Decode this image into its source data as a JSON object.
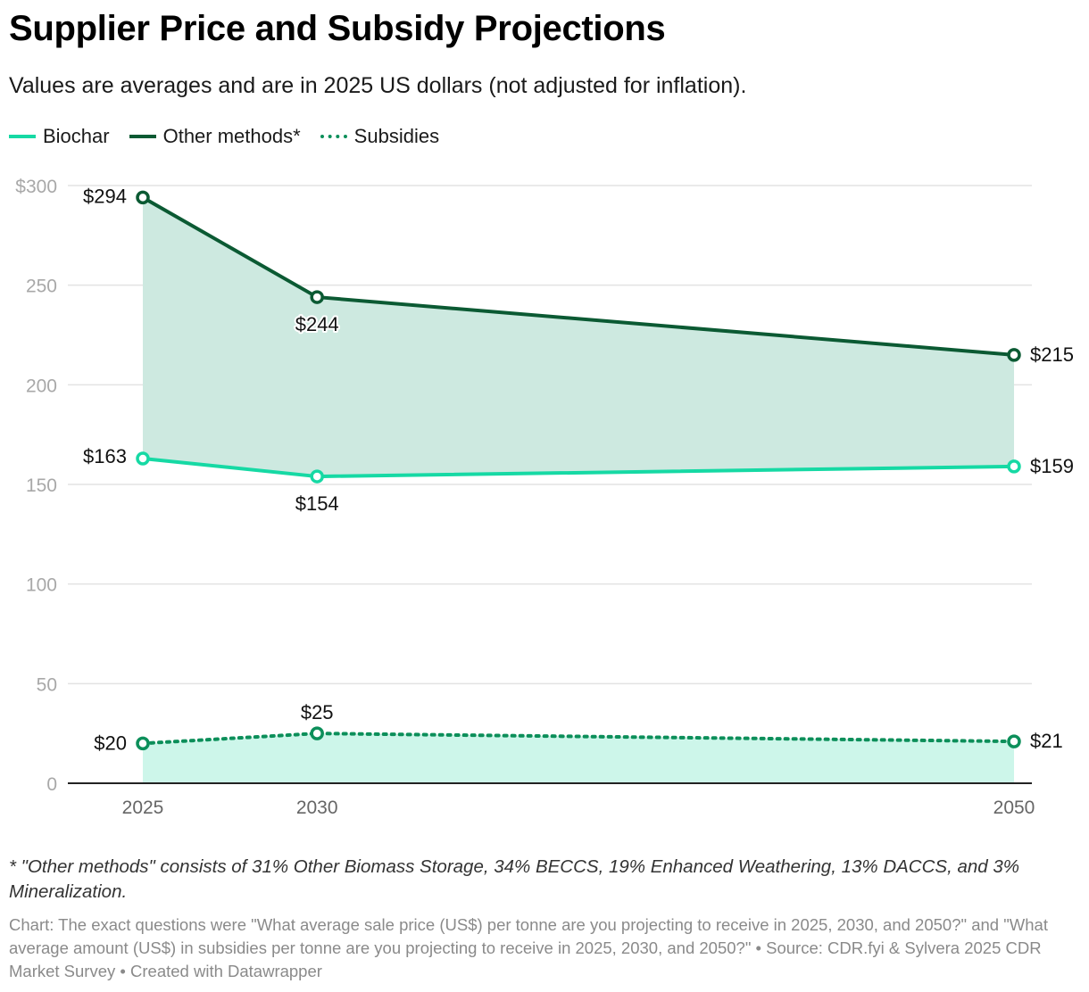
{
  "header": {
    "title": "Supplier Price and Subsidy Projections",
    "subtitle": "Values are averages and are in 2025 US dollars (not adjusted for inflation)."
  },
  "legend": [
    {
      "label": "Biochar",
      "color": "#16d9a4",
      "style": "solid"
    },
    {
      "label": "Other methods*",
      "color": "#0b5a33",
      "style": "solid"
    },
    {
      "label": "Subsidies",
      "color": "#0c8f5a",
      "style": "dotted"
    }
  ],
  "chart_data": {
    "type": "line",
    "x": [
      2025,
      2030,
      2050
    ],
    "x_tick_labels": [
      "2025",
      "2030",
      "2050"
    ],
    "ylim": [
      0,
      300
    ],
    "y_ticks": [
      0,
      50,
      100,
      150,
      200,
      250,
      300
    ],
    "y_tick_labels": [
      "0",
      "50",
      "100",
      "150",
      "200",
      "250",
      "$300"
    ],
    "grid": true,
    "legend_position": "top-left",
    "series": [
      {
        "name": "Biochar",
        "values": [
          163,
          154,
          159
        ],
        "labels": [
          "$163",
          "$154",
          "$159"
        ],
        "color": "#16d9a4",
        "dash": false
      },
      {
        "name": "Other methods*",
        "values": [
          294,
          244,
          215
        ],
        "labels": [
          "$294",
          "$244",
          "$215"
        ],
        "color": "#0b5a33",
        "dash": false
      },
      {
        "name": "Subsidies",
        "values": [
          20,
          25,
          21
        ],
        "labels": [
          "$20",
          "$25",
          "$21"
        ],
        "color": "#0c8f5a",
        "dash": true
      }
    ],
    "bands": [
      {
        "between": [
          "Biochar",
          "Other methods*"
        ],
        "color": "#cde9e0"
      },
      {
        "between": [
          "baseline",
          "Subsidies"
        ],
        "color": "#cdf6ea"
      }
    ]
  },
  "footer": {
    "note": "* \"Other methods\" consists of 31% Other Biomass Storage, 34% BECCS, 19% Enhanced Weathering, 13% DACCS, and 3% Mineralization.",
    "source": "Chart: The exact questions were \"What average sale price (US$) per tonne are you projecting to receive in 2025, 2030, and 2050?\" and \"What average amount (US$) in subsidies per tonne are you projecting to receive in 2025, 2030, and 2050?\" • Source: CDR.fyi & Sylvera 2025 CDR Market Survey • Created with Datawrapper"
  }
}
